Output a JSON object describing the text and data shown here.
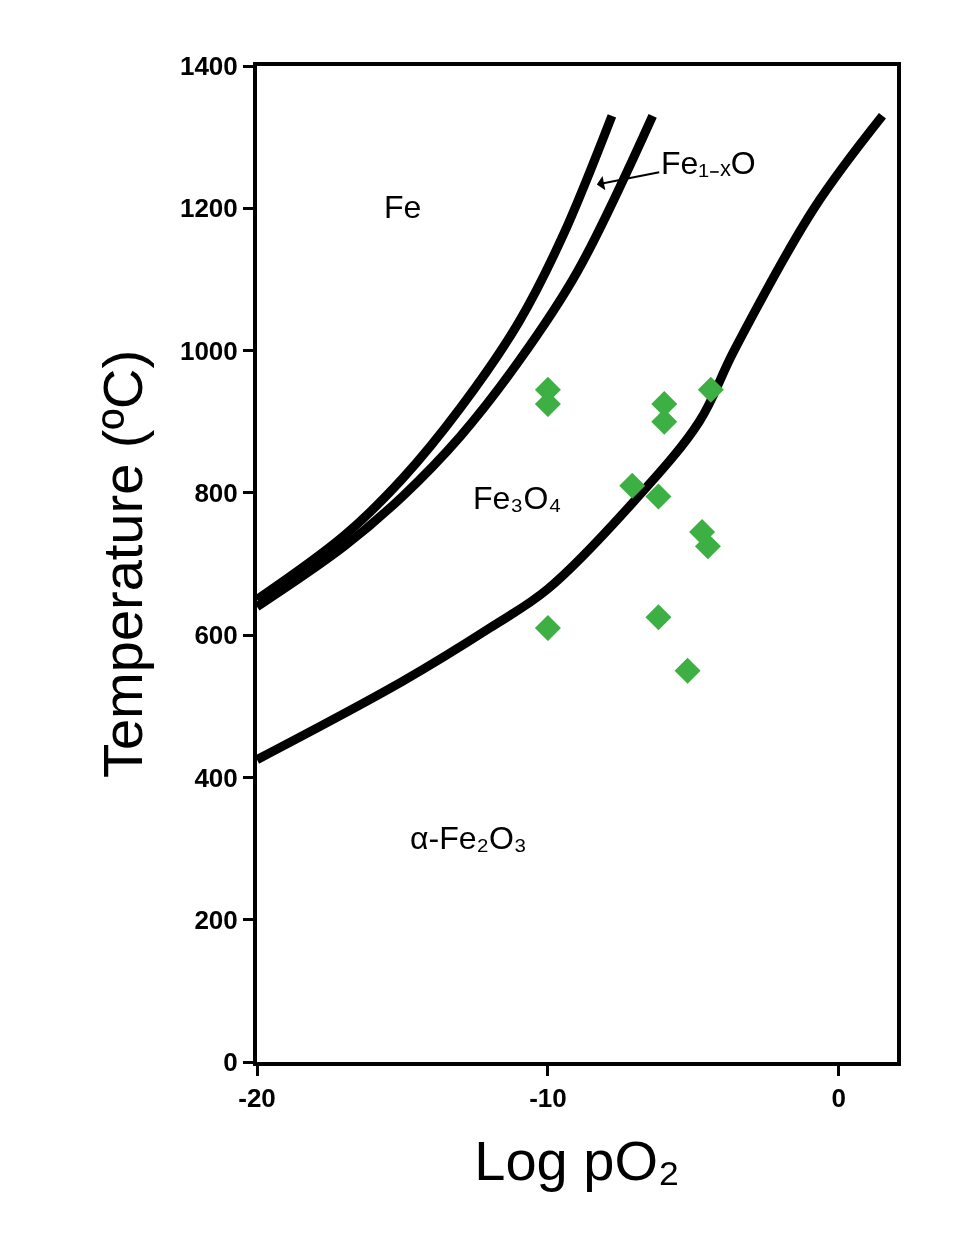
{
  "chart_data": {
    "type": "line",
    "xlabel": "Log pO₂",
    "ylabel": "Temperature (ºC)",
    "xlim": [
      -20,
      2
    ],
    "xticks": [
      -20,
      -10,
      0
    ],
    "ylim": [
      0,
      1400
    ],
    "yticks": [
      0,
      200,
      400,
      600,
      800,
      1000,
      1200,
      1400
    ],
    "marker": "none",
    "line_style": "solid",
    "series": [
      {
        "color": "#000000",
        "x": [
          -20,
          -17,
          -15,
          -13,
          -11,
          -9.5,
          -7.8
        ],
        "values": [
          650,
          740,
          820,
          920,
          1040,
          1160,
          1330
        ]
      },
      {
        "color": "#000000",
        "x": [
          -20,
          -17,
          -15,
          -13,
          -11,
          -9,
          -6.4
        ],
        "values": [
          640,
          725,
          795,
          880,
          985,
          1110,
          1330
        ]
      },
      {
        "color": "#000000",
        "x": [
          -20,
          -15,
          -12,
          -10,
          -7,
          -4.8,
          -3.6,
          -0.85,
          1.5
        ],
        "values": [
          425,
          535,
          610,
          665,
          790,
          900,
          1000,
          1200,
          1330
        ]
      },
      {
        "type": "scatter",
        "marker": "diamond",
        "color": "#3cb043",
        "x": [
          -10,
          -10,
          -6,
          -6,
          -4.4,
          -7.1,
          -6.2,
          -4.7,
          -4.5,
          -10,
          -6.2,
          -5.2
        ],
        "values": [
          945,
          925,
          925,
          900,
          945,
          810,
          795,
          745,
          725,
          610,
          625,
          550
        ]
      }
    ],
    "annotations": [
      "Fe",
      "Fe₁₋ₓO",
      "Fe₃O₄",
      "α-Fe₂O₃"
    ]
  }
}
